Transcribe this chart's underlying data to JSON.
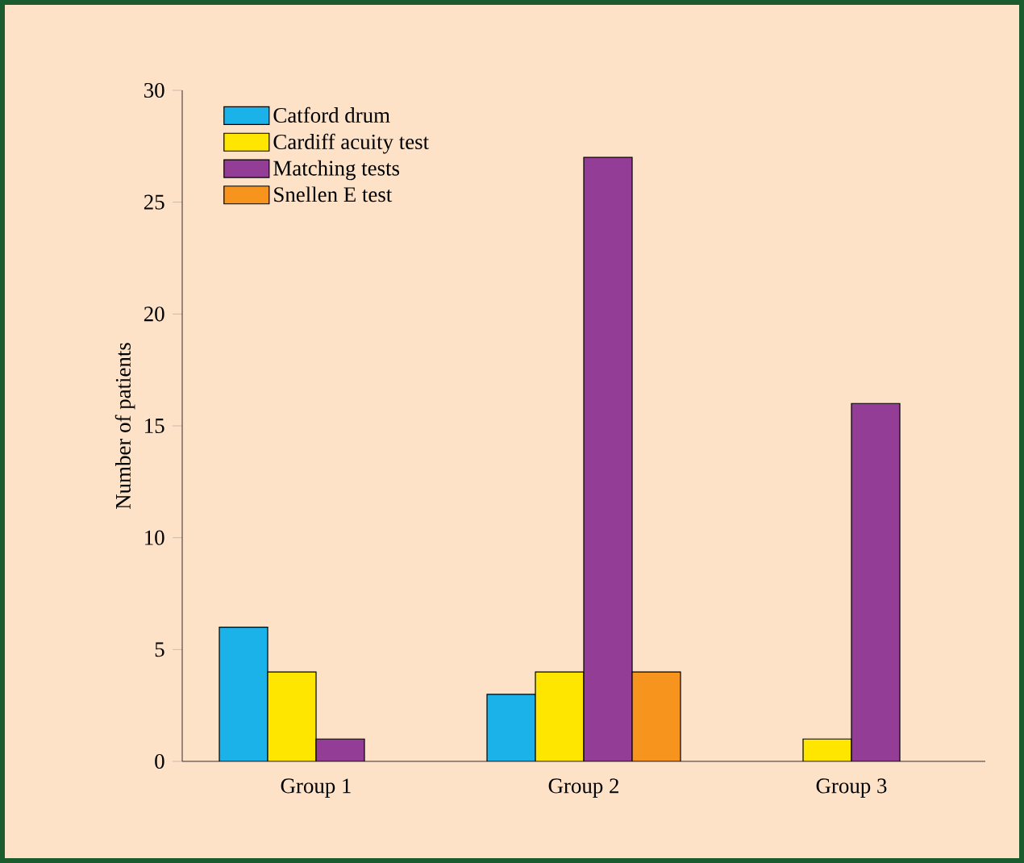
{
  "chart_data": {
    "type": "bar",
    "ylabel": "Number of patients",
    "categories": [
      "Group 1",
      "Group 2",
      "Group 3"
    ],
    "series": [
      {
        "name": "Catford drum",
        "color": "#1ab2e8",
        "values": [
          6,
          3,
          null
        ]
      },
      {
        "name": "Cardiff acuity test",
        "color": "#ffe600",
        "values": [
          4,
          4,
          1
        ]
      },
      {
        "name": "Matching tests",
        "color": "#943d96",
        "values": [
          1,
          27,
          16
        ]
      },
      {
        "name": "Snellen E test",
        "color": "#f7941d",
        "values": [
          null,
          4,
          null
        ]
      }
    ],
    "ylim": [
      0,
      30
    ],
    "yticks": [
      0,
      5,
      10,
      15,
      20,
      25,
      30
    ],
    "grid": false,
    "legend": "top left"
  }
}
